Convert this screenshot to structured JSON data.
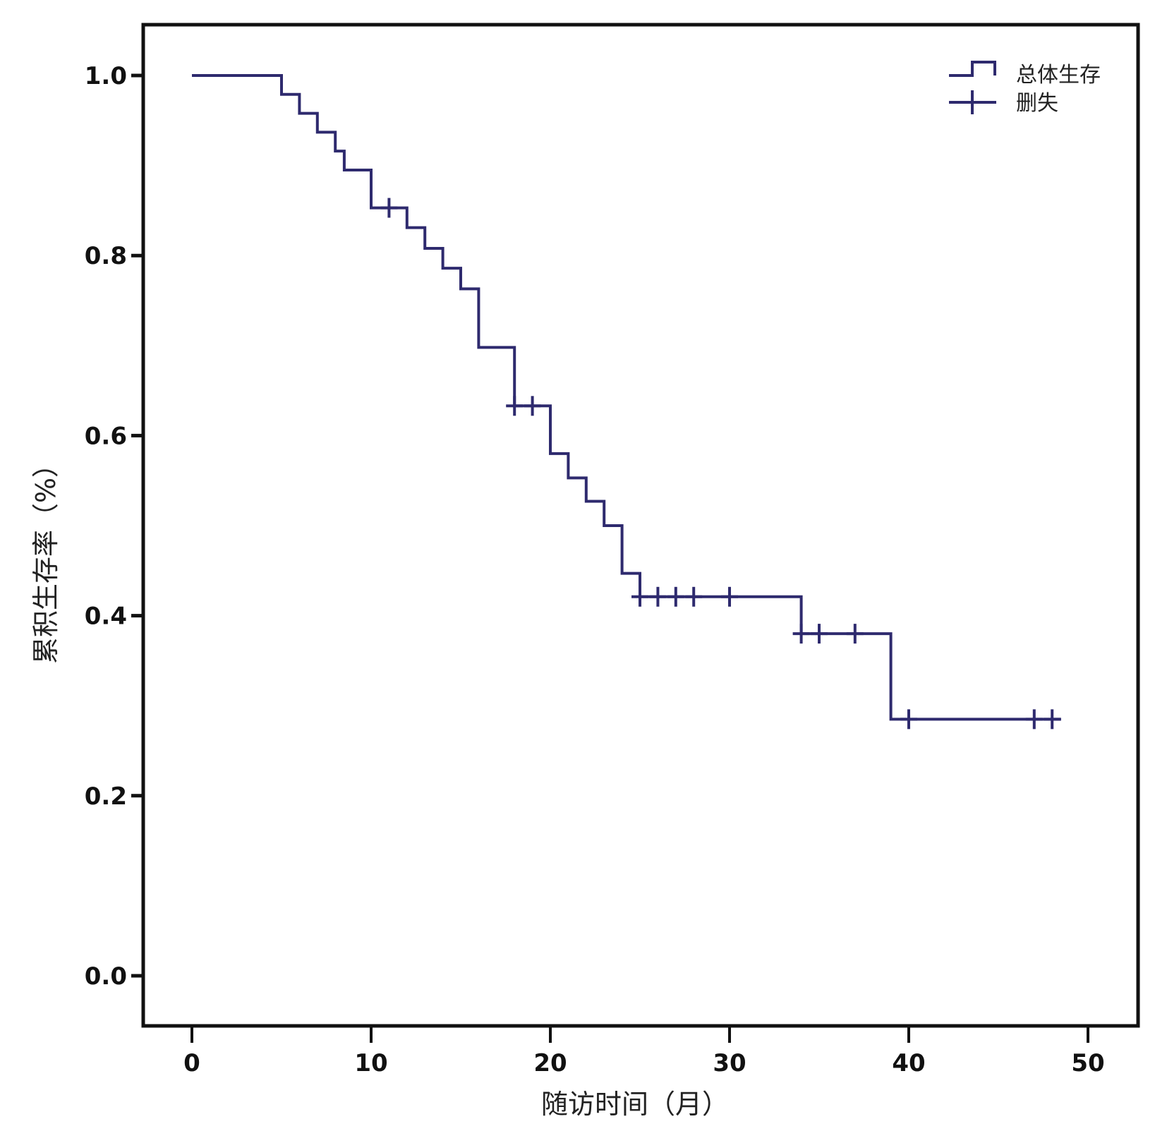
{
  "chart_data": {
    "type": "line",
    "subtype": "kaplan-meier-step",
    "xlabel": "随访时间（月）",
    "ylabel": "累积生存率（%）",
    "xlim": [
      -2.8,
      52.8
    ],
    "ylim": [
      -0.055,
      1.055
    ],
    "xticks": [
      "0",
      "10",
      "20",
      "30",
      "40",
      "50"
    ],
    "yticks": [
      "0.0",
      "0.2",
      "0.4",
      "0.6",
      "0.8",
      "1.0"
    ],
    "grid": false,
    "legend_position": "top-right",
    "legend": [
      "总体生存",
      "删失"
    ],
    "line_color": "#2e2a6e",
    "series": [
      {
        "name": "总体生存",
        "steps": [
          [
            0,
            1.0
          ],
          [
            5,
            0.979
          ],
          [
            6,
            0.958
          ],
          [
            7,
            0.937
          ],
          [
            8,
            0.916
          ],
          [
            8.5,
            0.895
          ],
          [
            10,
            0.853
          ],
          [
            12,
            0.831
          ],
          [
            13,
            0.808
          ],
          [
            14,
            0.786
          ],
          [
            15,
            0.763
          ],
          [
            16,
            0.698
          ],
          [
            18,
            0.633
          ],
          [
            20,
            0.58
          ],
          [
            21,
            0.553
          ],
          [
            22,
            0.527
          ],
          [
            23,
            0.5
          ],
          [
            24,
            0.447
          ],
          [
            25,
            0.421
          ],
          [
            34,
            0.38
          ],
          [
            39,
            0.285
          ]
        ],
        "end_x": 48.5
      },
      {
        "name": "删失",
        "points": [
          [
            11,
            0.853
          ],
          [
            18,
            0.633
          ],
          [
            19,
            0.633
          ],
          [
            25,
            0.421
          ],
          [
            26,
            0.421
          ],
          [
            27,
            0.421
          ],
          [
            28,
            0.421
          ],
          [
            30,
            0.421
          ],
          [
            34,
            0.38
          ],
          [
            35,
            0.38
          ],
          [
            37,
            0.38
          ],
          [
            40,
            0.285
          ],
          [
            47,
            0.285
          ],
          [
            48,
            0.285
          ]
        ]
      }
    ]
  }
}
